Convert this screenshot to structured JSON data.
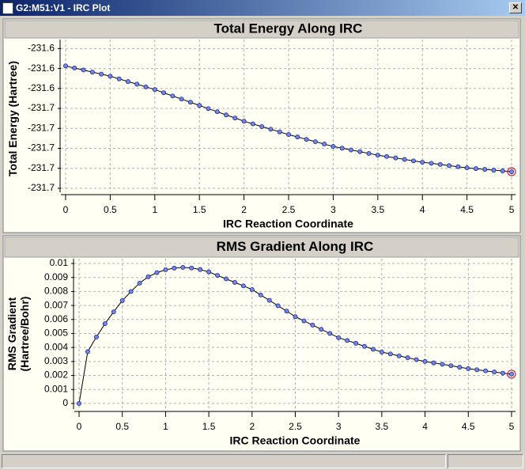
{
  "window": {
    "title": "G2:M51:V1 - IRC Plot"
  },
  "chart_data": [
    {
      "type": "line",
      "title": "Total Energy Along IRC",
      "xlabel": "IRC Reaction Coordinate",
      "ylabel": "Total Energy (Hartree)",
      "x": [
        0,
        0.1,
        0.2,
        0.3,
        0.4,
        0.5,
        0.6,
        0.7,
        0.8,
        0.9,
        1,
        1.1,
        1.2,
        1.3,
        1.4,
        1.5,
        1.6,
        1.7,
        1.8,
        1.9,
        2,
        2.1,
        2.2,
        2.3,
        2.4,
        2.5,
        2.6,
        2.7,
        2.8,
        2.9,
        3,
        3.1,
        3.2,
        3.3,
        3.4,
        3.5,
        3.6,
        3.7,
        3.8,
        3.9,
        4,
        4.1,
        4.2,
        4.3,
        4.4,
        4.5,
        4.6,
        4.7,
        4.8,
        4.9,
        5
      ],
      "series": [
        {
          "color": "#000000",
          "values": [
            -231.6174,
            -231.6195,
            -231.6215,
            -231.6236,
            -231.6256,
            -231.6277,
            -231.6304,
            -231.6331,
            -231.6357,
            -231.6384,
            -231.6411,
            -231.6443,
            -231.6475,
            -231.6506,
            -231.6538,
            -231.657,
            -231.6602,
            -231.6633,
            -231.6665,
            -231.6696,
            -231.6728,
            -231.6755,
            -231.6782,
            -231.6808,
            -231.6835,
            -231.6862,
            -231.6886,
            -231.691,
            -231.6933,
            -231.6957,
            -231.6981,
            -231.6998,
            -231.7016,
            -231.7033,
            -231.7051,
            -231.7068,
            -231.7082,
            -231.7096,
            -231.7111,
            -231.7125,
            -231.7139,
            -231.715,
            -231.7161,
            -231.7173,
            -231.7184,
            -231.7195,
            -231.7203,
            -231.7211,
            -231.7218,
            -231.7226,
            -231.7234
          ]
        }
      ],
      "xlim": [
        -0.053,
        5.044
      ],
      "xticks": [
        0,
        0.5,
        1,
        1.5,
        2,
        2.5,
        3,
        3.5,
        4,
        4.5,
        5
      ],
      "ylim": [
        -231.744,
        -231.591
      ],
      "yticks": [
        {
          "value": -231.6,
          "label": "-231.6"
        },
        {
          "value": -231.62,
          "label": "-231.6"
        },
        {
          "value": -231.64,
          "label": "-231.6"
        },
        {
          "value": -231.66,
          "label": "-231.7"
        },
        {
          "value": -231.68,
          "label": "-231.7"
        },
        {
          "value": -231.7,
          "label": "-231.7"
        },
        {
          "value": -231.72,
          "label": "-231.7"
        },
        {
          "value": -231.74,
          "label": "-231.7"
        }
      ],
      "grid": true,
      "marker_color": "#6f86f5"
    },
    {
      "type": "line",
      "title": "RMS Gradient Along IRC",
      "xlabel": "IRC Reaction Coordinate",
      "ylabel": "RMS Gradient (Hartree/Bohr)",
      "x": [
        0,
        0.1,
        0.2,
        0.3,
        0.4,
        0.5,
        0.6,
        0.7,
        0.8,
        0.9,
        1,
        1.1,
        1.2,
        1.3,
        1.4,
        1.5,
        1.6,
        1.7,
        1.8,
        1.9,
        2,
        2.1,
        2.2,
        2.3,
        2.4,
        2.5,
        2.6,
        2.7,
        2.8,
        2.9,
        3,
        3.1,
        3.2,
        3.3,
        3.4,
        3.5,
        3.6,
        3.7,
        3.8,
        3.9,
        4,
        4.1,
        4.2,
        4.3,
        4.4,
        4.5,
        4.6,
        4.7,
        4.8,
        4.9,
        5
      ],
      "series": [
        {
          "color": "#000000",
          "values": [
            0,
            0.0037,
            0.00475,
            0.0057,
            0.00655,
            0.00735,
            0.008,
            0.0086,
            0.00905,
            0.00935,
            0.00955,
            0.00967,
            0.00972,
            0.00968,
            0.00957,
            0.0094,
            0.00915,
            0.0089,
            0.00865,
            0.0084,
            0.00814,
            0.00775,
            0.00737,
            0.00698,
            0.0066,
            0.0062,
            0.0059,
            0.0056,
            0.0053,
            0.005,
            0.0047,
            0.0045,
            0.0043,
            0.00408,
            0.00387,
            0.00367,
            0.00354,
            0.0034,
            0.00327,
            0.00313,
            0.003,
            0.0029,
            0.0028,
            0.0027,
            0.00259,
            0.00249,
            0.00241,
            0.00233,
            0.00225,
            0.00217,
            0.00209
          ]
        }
      ],
      "xlim": [
        -0.055,
        5.046
      ],
      "xticks": [
        0,
        0.5,
        1,
        1.5,
        2,
        2.5,
        3,
        3.5,
        4,
        4.5,
        5
      ],
      "ylim": [
        -0.0004,
        0.01034
      ],
      "yticks": [
        0,
        0.001,
        0.002,
        0.003,
        0.004,
        0.005,
        0.006,
        0.007,
        0.008,
        0.009,
        0.01
      ],
      "grid": true,
      "marker_color": "#6f86f5"
    }
  ]
}
